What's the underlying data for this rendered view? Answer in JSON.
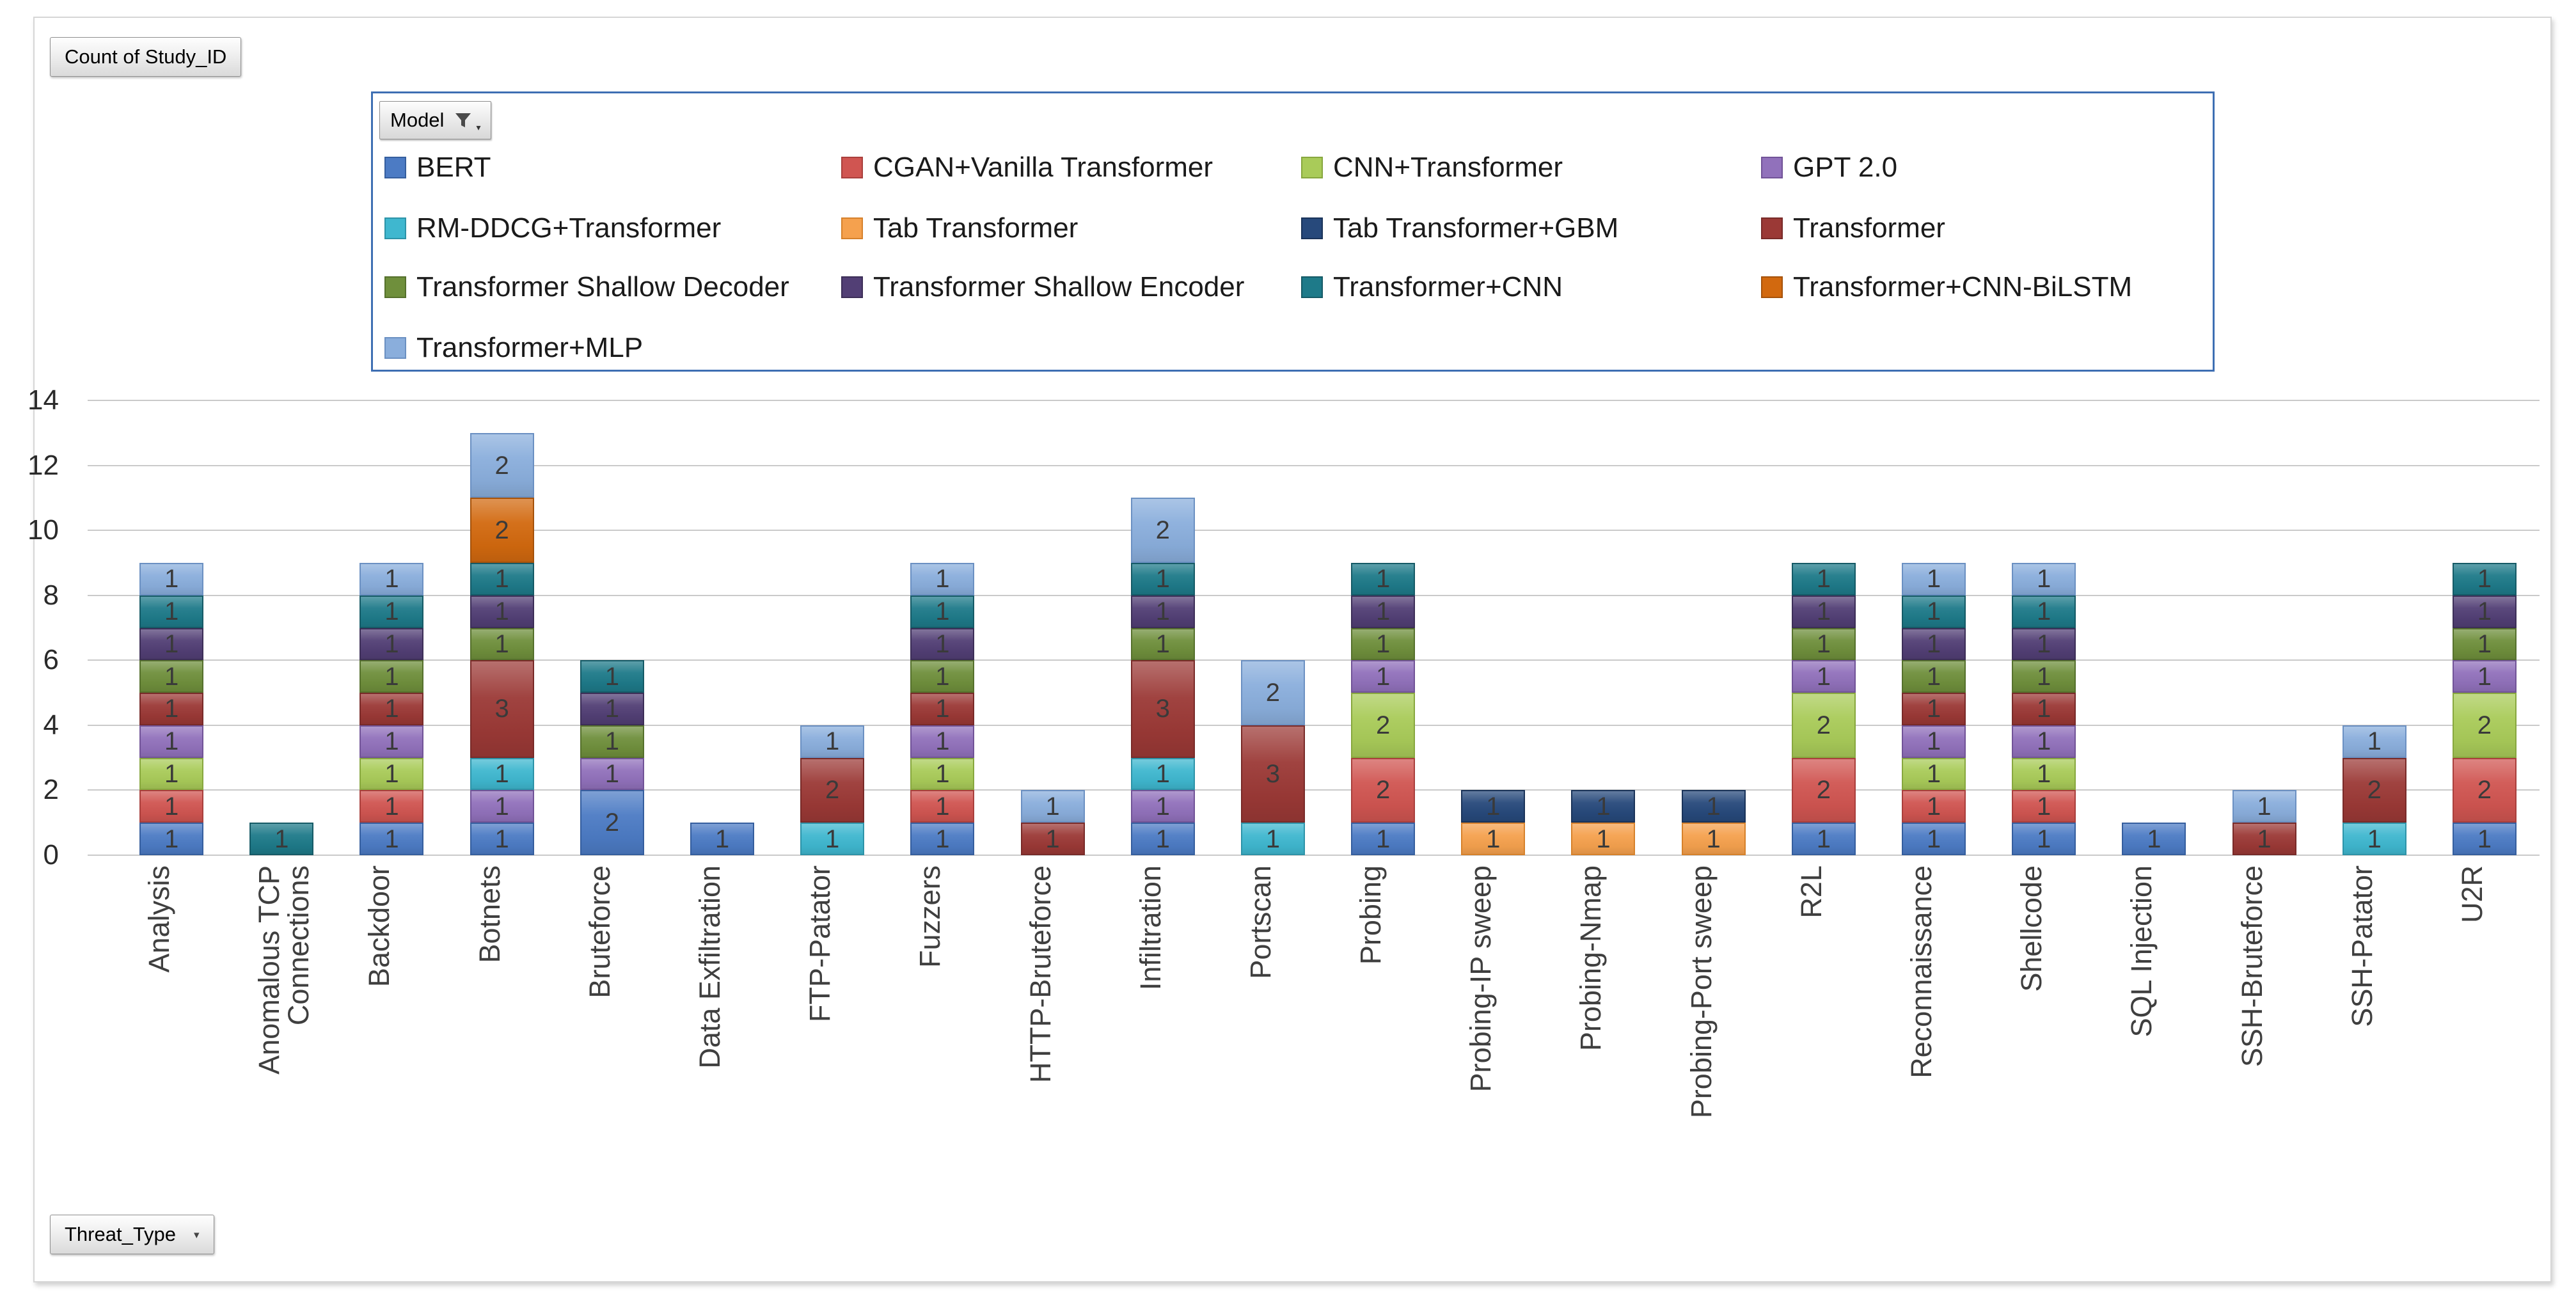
{
  "buttons": {
    "value_field": "Count of Study_ID",
    "axis_field": "Threat_Type",
    "legend_field": "Model"
  },
  "icons": {
    "filter_funnel": "filter-funnel-icon",
    "dropdown_arrow": "▾"
  },
  "colors": {
    "legend_border": "#3E6FB3",
    "gridline": "#CACACA",
    "axis_text": "#2A2A2A",
    "segment_label_text": "#3A3A3A",
    "category_text": "#3F3F3F"
  },
  "chart_data": {
    "type": "bar",
    "stacked": true,
    "title": "Count of Study_ID",
    "xlabel": "Threat_Type",
    "ylabel": "",
    "legend_title": "Model",
    "legend_position": "top",
    "grid": true,
    "ylim": [
      0,
      14
    ],
    "yticks": [
      0,
      2,
      4,
      6,
      8,
      10,
      12,
      14
    ],
    "categories": [
      "Analysis",
      "Anomalous TCP\nConnections",
      "Backdoor",
      "Botnets",
      "Bruteforce",
      "Data Exfiltration",
      "FTP-Patator",
      "Fuzzers",
      "HTTP-Bruteforce",
      "Infiltration",
      "Portscan",
      "Probing",
      "Probing-IP sweep",
      "Probing-Nmap",
      "Probing-Port sweep",
      "R2L",
      "Reconnaissance",
      "Shellcode",
      "SQL Injection",
      "SSH-Bruteforce",
      "SSH-Patator",
      "U2R"
    ],
    "series": [
      {
        "name": "BERT",
        "color": "#4C7BC4",
        "edge": "#355E9E",
        "values": [
          1,
          0,
          1,
          1,
          2,
          1,
          0,
          1,
          0,
          1,
          0,
          1,
          0,
          0,
          0,
          1,
          1,
          1,
          1,
          0,
          0,
          1
        ]
      },
      {
        "name": "CGAN+Vanilla Transformer",
        "color": "#D05551",
        "edge": "#A93F3C",
        "values": [
          1,
          0,
          1,
          0,
          0,
          0,
          0,
          1,
          0,
          0,
          0,
          2,
          0,
          0,
          0,
          2,
          1,
          1,
          0,
          0,
          0,
          2
        ]
      },
      {
        "name": "CNN+Transformer",
        "color": "#A9CB59",
        "edge": "#87A73E",
        "values": [
          1,
          0,
          1,
          0,
          0,
          0,
          0,
          1,
          0,
          0,
          0,
          2,
          0,
          0,
          0,
          2,
          1,
          1,
          0,
          0,
          0,
          2
        ]
      },
      {
        "name": "GPT 2.0",
        "color": "#9171BB",
        "edge": "#715397",
        "values": [
          1,
          0,
          1,
          1,
          1,
          0,
          0,
          1,
          0,
          1,
          0,
          1,
          0,
          0,
          0,
          1,
          1,
          1,
          0,
          0,
          0,
          1
        ]
      },
      {
        "name": "RM-DDCG+Transformer",
        "color": "#3FB7CF",
        "edge": "#2D93A8",
        "values": [
          0,
          0,
          0,
          1,
          0,
          0,
          1,
          0,
          0,
          1,
          1,
          0,
          0,
          0,
          0,
          0,
          0,
          0,
          0,
          0,
          1,
          0
        ]
      },
      {
        "name": "Tab Transformer",
        "color": "#F5A14E",
        "edge": "#D6812B",
        "values": [
          0,
          0,
          0,
          0,
          0,
          0,
          0,
          0,
          0,
          0,
          0,
          0,
          1,
          1,
          1,
          0,
          0,
          0,
          0,
          0,
          0,
          0
        ]
      },
      {
        "name": "Tab Transformer+GBM",
        "color": "#27497B",
        "edge": "#1A3359",
        "values": [
          0,
          0,
          0,
          0,
          0,
          0,
          0,
          0,
          0,
          0,
          0,
          0,
          1,
          1,
          1,
          0,
          0,
          0,
          0,
          0,
          0,
          0
        ]
      },
      {
        "name": "Transformer",
        "color": "#9B3936",
        "edge": "#782A28",
        "values": [
          1,
          0,
          1,
          3,
          0,
          0,
          2,
          1,
          1,
          3,
          3,
          0,
          0,
          0,
          0,
          0,
          1,
          1,
          0,
          1,
          2,
          0
        ]
      },
      {
        "name": "Transformer Shallow Decoder",
        "color": "#6F8F3C",
        "edge": "#55702C",
        "values": [
          1,
          0,
          1,
          1,
          1,
          0,
          0,
          1,
          0,
          1,
          0,
          1,
          0,
          0,
          0,
          1,
          1,
          1,
          0,
          0,
          0,
          1
        ]
      },
      {
        "name": "Transformer Shallow Encoder",
        "color": "#523F75",
        "edge": "#3C2E57",
        "values": [
          1,
          0,
          1,
          1,
          1,
          0,
          0,
          1,
          0,
          1,
          0,
          1,
          0,
          0,
          0,
          1,
          1,
          1,
          0,
          0,
          0,
          1
        ]
      },
      {
        "name": "Transformer+CNN",
        "color": "#1E7A89",
        "edge": "#155A66",
        "values": [
          1,
          1,
          1,
          1,
          1,
          0,
          0,
          1,
          0,
          1,
          0,
          1,
          0,
          0,
          0,
          1,
          1,
          1,
          0,
          0,
          0,
          1
        ]
      },
      {
        "name": "Transformer+CNN-BiLSTM",
        "color": "#D2690F",
        "edge": "#A5520B",
        "values": [
          0,
          0,
          0,
          2,
          0,
          0,
          0,
          0,
          0,
          0,
          0,
          0,
          0,
          0,
          0,
          0,
          0,
          0,
          0,
          0,
          0,
          0
        ]
      },
      {
        "name": "Transformer+MLP",
        "color": "#8AAEDC",
        "edge": "#6B90C2",
        "values": [
          1,
          0,
          1,
          2,
          0,
          0,
          1,
          1,
          1,
          2,
          2,
          0,
          0,
          0,
          0,
          0,
          1,
          1,
          0,
          1,
          1,
          0
        ]
      }
    ]
  }
}
